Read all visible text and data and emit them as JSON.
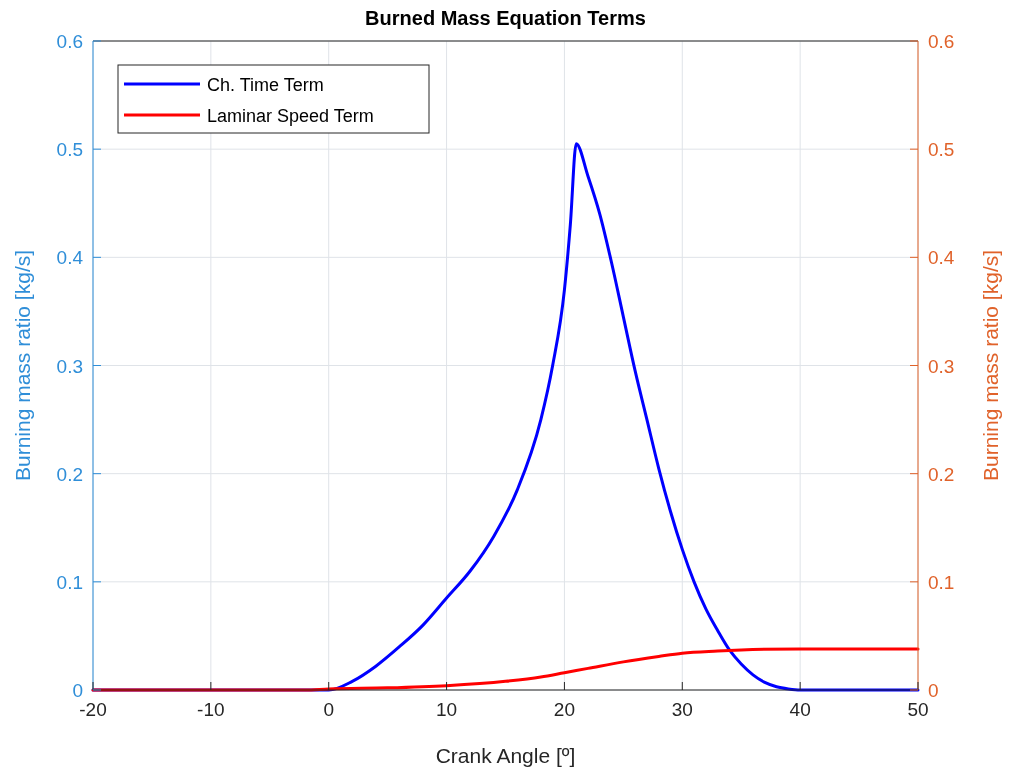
{
  "chart_data": {
    "type": "line",
    "title": "Burned Mass Equation Terms",
    "xlabel": "Crank Angle [º]",
    "ylabel": "Burning mass ratio [kg/s]",
    "y2label": "Burning mass ratio [kg/s]",
    "xlim": [
      -20,
      50
    ],
    "xticks": [
      -20,
      -10,
      0,
      10,
      20,
      30,
      40,
      50
    ],
    "ylim": [
      0,
      0.6
    ],
    "yticks": [
      0,
      0.1,
      0.2,
      0.3,
      0.4,
      0.5,
      0.6
    ],
    "y2lim": [
      0,
      0.6
    ],
    "y2ticks": [
      0,
      0.1,
      0.2,
      0.3,
      0.4,
      0.5,
      0.6
    ],
    "grid": true,
    "legend": "top left",
    "line_style": "solid",
    "marker": "none",
    "series": [
      {
        "name": "Ch. Time Term",
        "color": "#0000ff",
        "x": [
          -20,
          0,
          2,
          4,
          6,
          8,
          10,
          12,
          14,
          16,
          18,
          19,
          20,
          20.5,
          21,
          22,
          23,
          24,
          25,
          26,
          27,
          28,
          29,
          30,
          31,
          32,
          33,
          34,
          35,
          36,
          37,
          38,
          39,
          40,
          50
        ],
        "values": [
          0,
          0,
          0.008,
          0.022,
          0.04,
          0.06,
          0.085,
          0.11,
          0.142,
          0.185,
          0.25,
          0.3,
          0.37,
          0.43,
          0.505,
          0.475,
          0.44,
          0.395,
          0.345,
          0.295,
          0.25,
          0.205,
          0.165,
          0.13,
          0.1,
          0.075,
          0.055,
          0.037,
          0.024,
          0.014,
          0.007,
          0.003,
          0.001,
          0,
          0
        ]
      },
      {
        "name": "Laminar Speed Term",
        "color": "#ff0000",
        "axis": "y2",
        "x": [
          -20,
          -2,
          0,
          5,
          10,
          15,
          18,
          20,
          22,
          25,
          28,
          30,
          33,
          35,
          40,
          45,
          50
        ],
        "values": [
          0,
          0,
          0.001,
          0.002,
          0.004,
          0.008,
          0.012,
          0.016,
          0.02,
          0.026,
          0.031,
          0.034,
          0.036,
          0.037,
          0.038,
          0.038,
          0.038
        ]
      }
    ]
  }
}
